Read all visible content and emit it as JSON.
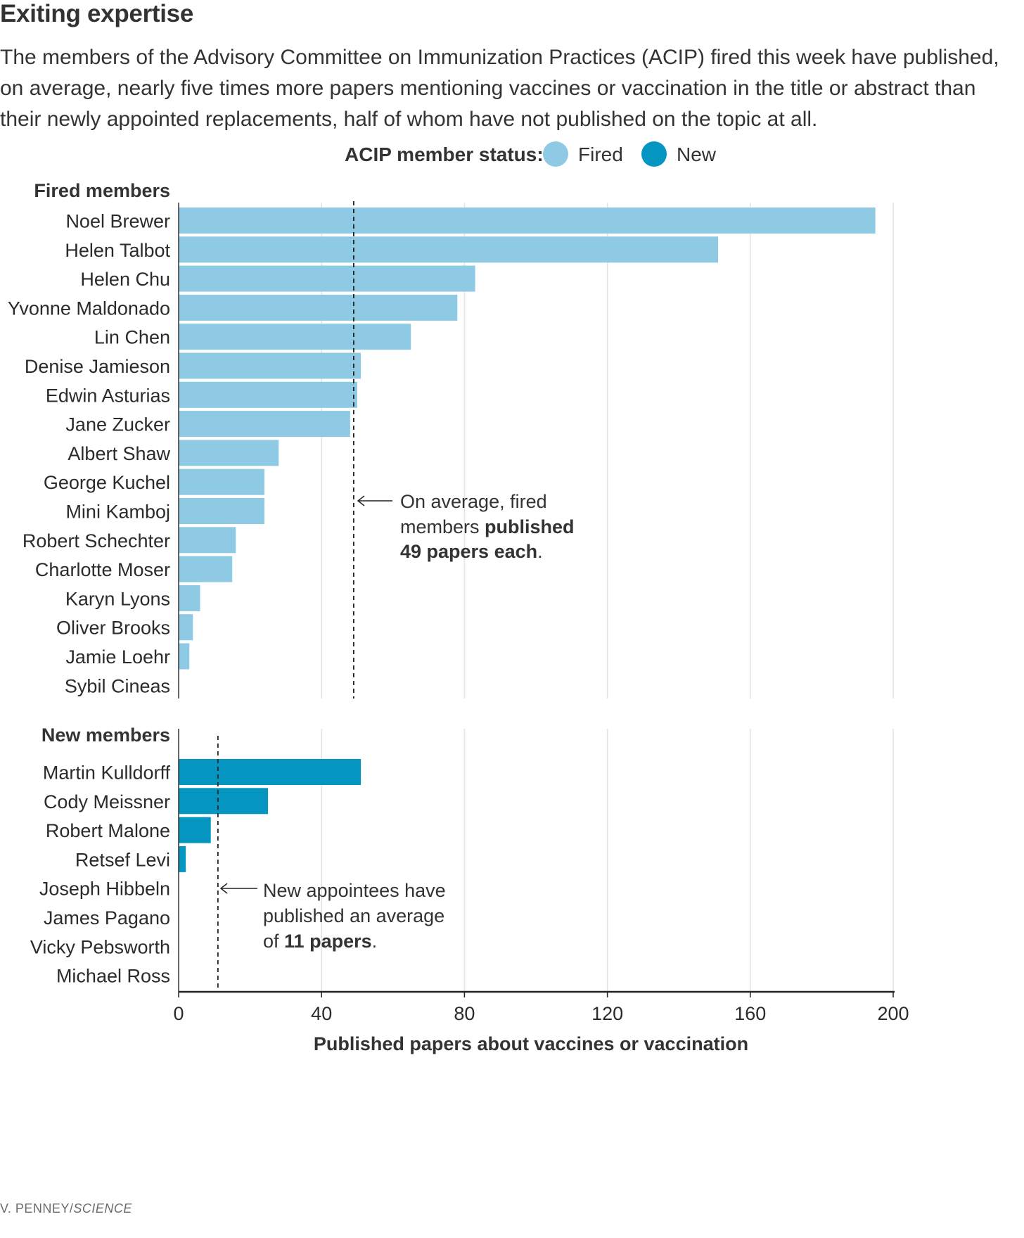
{
  "header": {
    "title": "Exiting expertise",
    "subtitle": "The members of the Advisory Committee on Immunization Practices (ACIP) fired this week have published, on average, nearly five times more papers mentioning vaccines or vaccination in the title or abstract than their newly appointed replacements, half of whom have not published on the topic at all."
  },
  "legend": {
    "label": "ACIP member status:",
    "items": [
      {
        "name": "Fired",
        "color": "#8ecae3"
      },
      {
        "name": "New",
        "color": "#0495c0"
      }
    ]
  },
  "credit": {
    "name": "V. PENNEY/",
    "outlet": "SCIENCE"
  },
  "chart_data": {
    "type": "bar",
    "orientation": "horizontal",
    "xlabel": "Published papers about vaccines or vaccination",
    "xlim": [
      0,
      200
    ],
    "xticks": [
      0,
      40,
      80,
      120,
      160,
      200
    ],
    "grid": true,
    "groups": [
      {
        "name": "Fired members",
        "color": "#8ecae3",
        "categories": [
          "Noel Brewer",
          "Helen Talbot",
          "Helen Chu",
          "Yvonne Maldonado",
          "Lin Chen",
          "Denise Jamieson",
          "Edwin Asturias",
          "Jane Zucker",
          "Albert Shaw",
          "George Kuchel",
          "Mini Kamboj",
          "Robert Schechter",
          "Charlotte Moser",
          "Karyn Lyons",
          "Oliver Brooks",
          "Jamie Loehr",
          "Sybil Cineas"
        ],
        "values": [
          195,
          151,
          83,
          78,
          65,
          51,
          50,
          48,
          28,
          24,
          24,
          16,
          15,
          6,
          4,
          3,
          0
        ],
        "average": 49,
        "annotation": {
          "text1": "On average, fired",
          "text2a": "members ",
          "text2b": "published",
          "text3a": "49 papers each",
          "text3b": "."
        }
      },
      {
        "name": "New members",
        "color": "#0495c0",
        "categories": [
          "Martin Kulldorff",
          "Cody Meissner",
          "Robert Malone",
          "Retsef Levi",
          "Joseph Hibbeln",
          "James Pagano",
          "Vicky Pebsworth",
          "Michael Ross"
        ],
        "values": [
          51,
          25,
          9,
          2,
          0,
          0,
          0,
          0
        ],
        "average": 11,
        "annotation": {
          "text1": "New appointees have",
          "text2": "published an average",
          "text3a": "of ",
          "text3b": "11 papers",
          "text3c": "."
        }
      }
    ]
  }
}
